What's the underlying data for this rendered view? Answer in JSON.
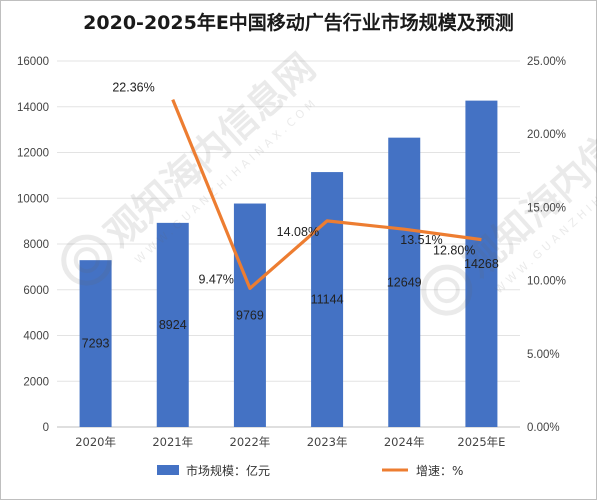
{
  "chart_data": {
    "type": "bar",
    "title": "2020-2025年E中国移动广告行业市场规模及预测",
    "categories": [
      "2020年",
      "2021年",
      "2022年",
      "2023年",
      "2024年",
      "2025年E"
    ],
    "series": [
      {
        "name": "市场规模：亿元",
        "type": "bar",
        "axis": "left",
        "color": "#4472c4",
        "values": [
          7293,
          8924,
          9769,
          11144,
          12649,
          14268
        ],
        "labels": [
          "7293",
          "8924",
          "9769",
          "11144",
          "12649",
          "14268"
        ]
      },
      {
        "name": "增速：%",
        "type": "line",
        "axis": "right",
        "color": "#ed7d31",
        "values": [
          null,
          22.36,
          9.47,
          14.08,
          13.51,
          12.8
        ],
        "labels": [
          "",
          "22.36%",
          "9.47%",
          "14.08%",
          "13.51%",
          "12.80%"
        ]
      }
    ],
    "y_left": {
      "range": [
        0,
        16000
      ],
      "ticks": [
        "0",
        "2000",
        "4000",
        "6000",
        "8000",
        "10000",
        "12000",
        "14000",
        "16000"
      ]
    },
    "y_right": {
      "range": [
        0,
        25
      ],
      "ticks": [
        "0.00%",
        "5.00%",
        "10.00%",
        "15.00%",
        "20.00%",
        "25.00%"
      ]
    },
    "grid": true,
    "legend": "bottom"
  },
  "watermark": {
    "text": "观知海内信息网",
    "subtext": "WWW.GUANZHIHAINAX.COM"
  }
}
